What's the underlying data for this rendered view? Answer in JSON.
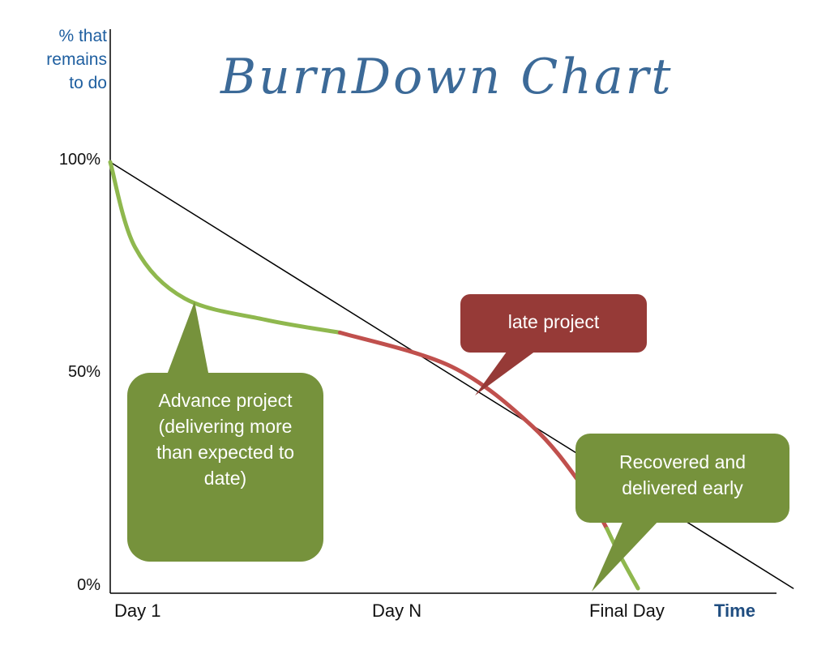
{
  "chart_data": {
    "type": "line",
    "title": "BurnDown Chart",
    "ylabel": "% that remains to do",
    "xlabel": "Time",
    "x_ticks": [
      "Day 1",
      "Day N",
      "Final Day"
    ],
    "y_ticks": [
      "100%",
      "50%",
      "0%"
    ],
    "ylim": [
      0,
      100
    ],
    "series": [
      {
        "name": "",
        "color": "#000000",
        "x": [
          0,
          1.1
        ],
        "y": [
          100,
          0
        ]
      },
      {
        "name": "",
        "color": "#8fb84e",
        "x": [
          0,
          0.04,
          0.12,
          0.25,
          0.37
        ],
        "y": [
          100,
          80,
          68,
          63,
          60
        ]
      },
      {
        "name": "",
        "color": "#c0504d",
        "x": [
          0.37,
          0.55,
          0.68,
          0.76,
          0.8
        ],
        "y": [
          60,
          52,
          38,
          24,
          14
        ]
      },
      {
        "name": "",
        "color": "#8fb84e",
        "x": [
          0.8,
          0.82,
          0.85
        ],
        "y": [
          14,
          8,
          0
        ]
      }
    ],
    "annotations": [
      {
        "text": "late project",
        "color": "#963a37"
      },
      {
        "text": "Advance project (delivering more than expected to date)",
        "color": "#76923c"
      },
      {
        "text": "Recovered and delivered early",
        "color": "#76923c"
      }
    ]
  },
  "labels": {
    "ylabel": "% that remains to do",
    "title": "BurnDown Chart",
    "y100": "100%",
    "y50": "50%",
    "y0": "0%",
    "day1": "Day 1",
    "dayN": "Day N",
    "final": "Final Day",
    "time": "Time",
    "late": "late project",
    "advance": "Advance project (delivering more than expected to date)",
    "recovered": "Recovered and delivered early"
  }
}
